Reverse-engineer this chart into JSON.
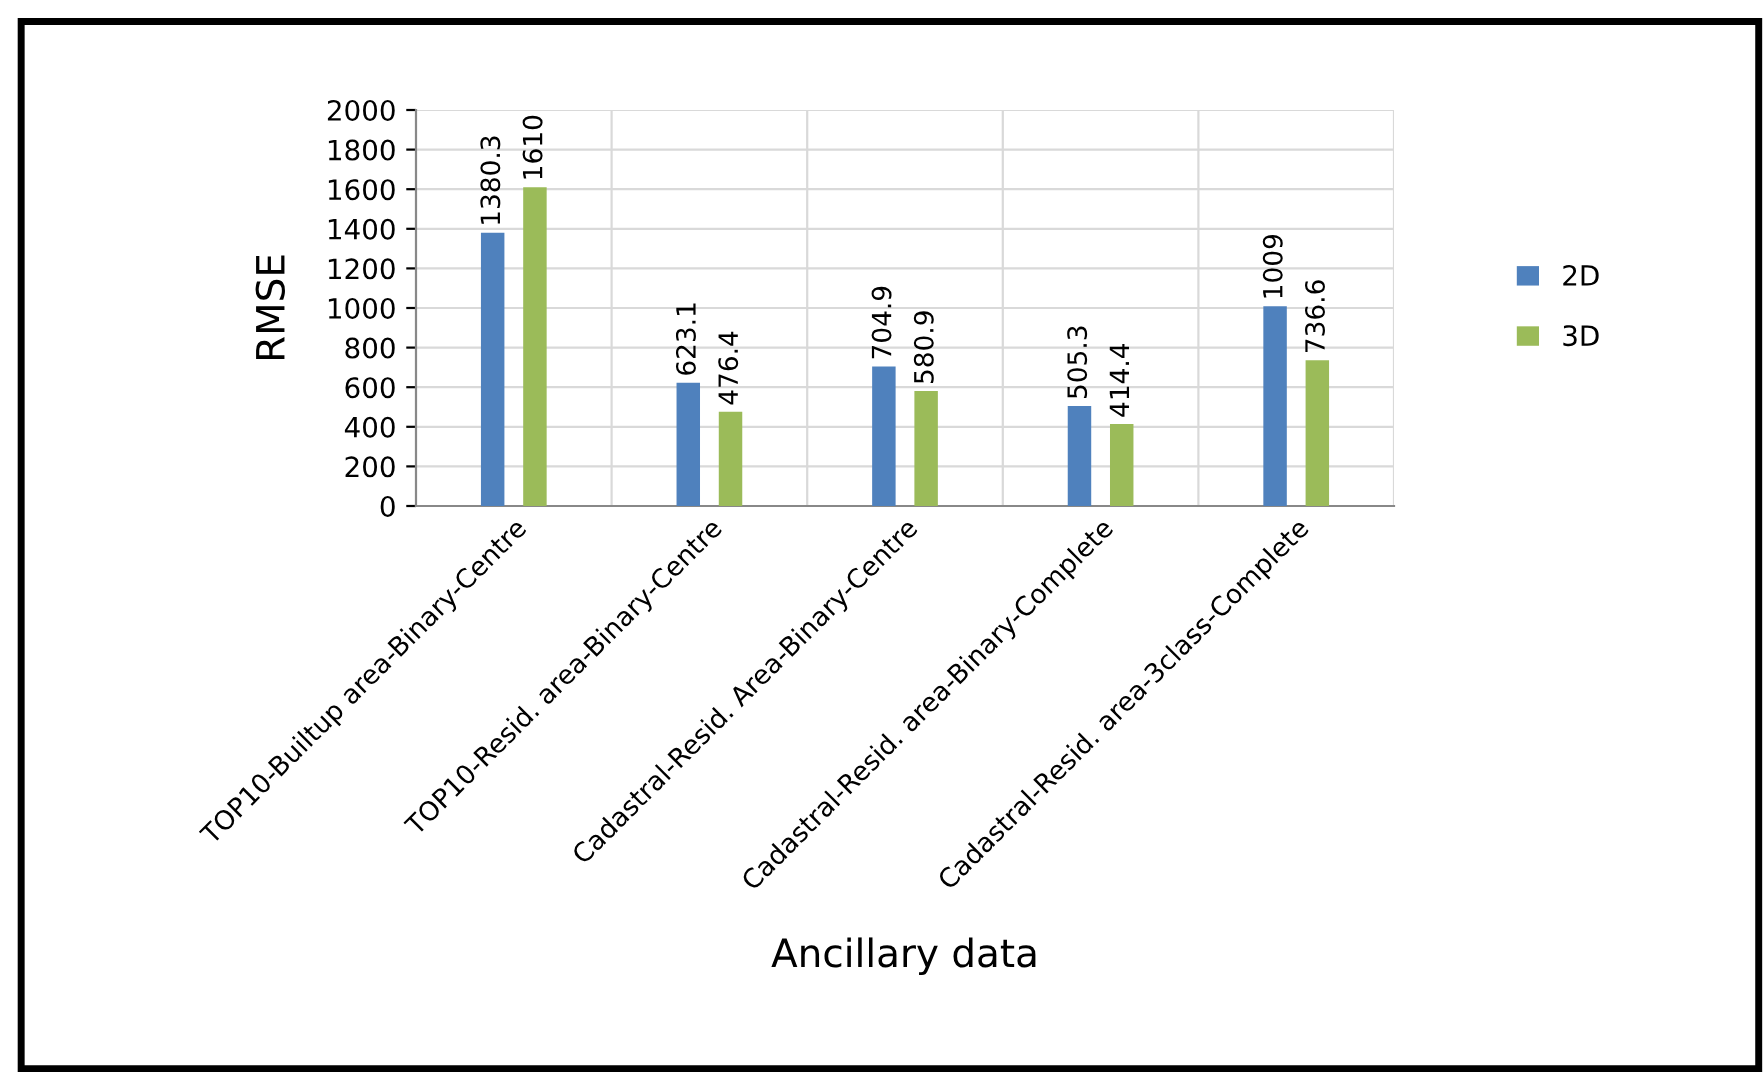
{
  "chart_data": {
    "type": "bar",
    "xlabel": "Ancillary data",
    "ylabel": "RMSE",
    "categories": [
      "TOP10-Builtup area-Binary-Centre",
      "TOP10-Resid. area-Binary-Centre",
      "Cadastral-Resid. Area-Binary-Centre",
      "Cadastral-Resid. area-Binary-Complete",
      "Cadastral-Resid. area-3class-Complete"
    ],
    "series": [
      {
        "name": "2D",
        "color": "#4f81bd",
        "values": [
          1380.3,
          623.1,
          704.9,
          505.3,
          1009
        ]
      },
      {
        "name": "3D",
        "color": "#9bbb59",
        "values": [
          1610,
          476.4,
          580.9,
          414.4,
          736.6
        ]
      }
    ],
    "ylim": [
      0,
      2000
    ],
    "yticks": [
      0,
      200,
      400,
      600,
      800,
      1000,
      1200,
      1400,
      1600,
      1800,
      2000
    ],
    "grid": true,
    "legend": "right",
    "data_labels": true
  }
}
